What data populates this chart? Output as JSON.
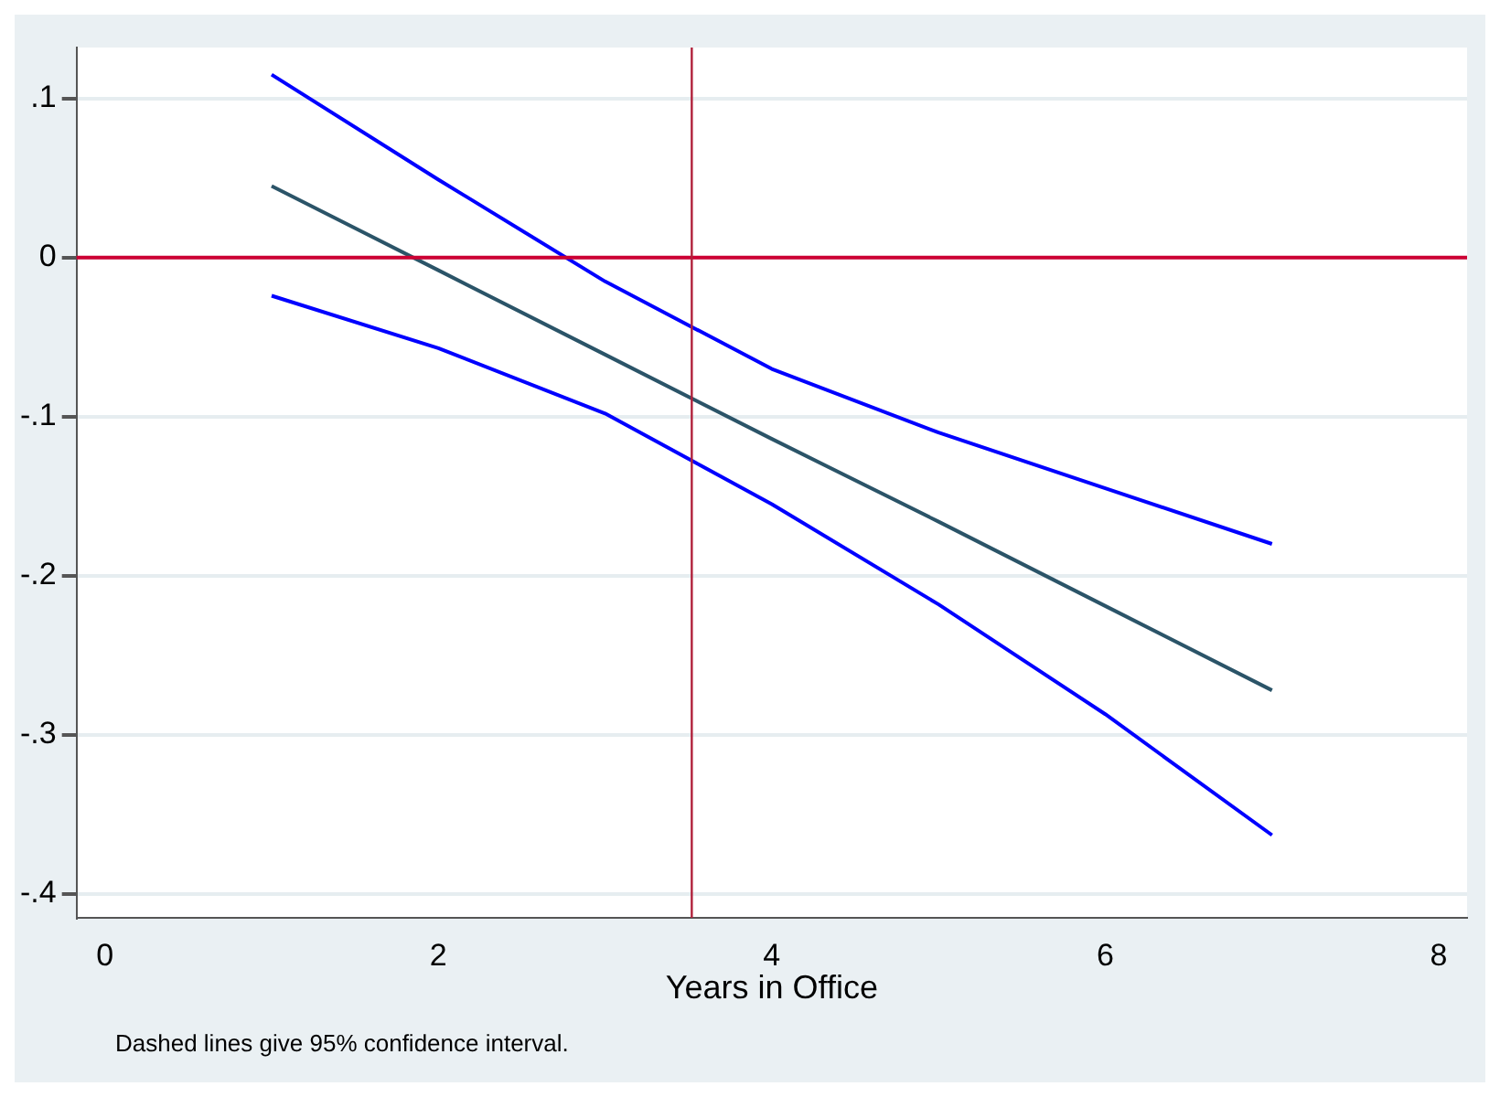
{
  "chart_data": {
    "type": "line",
    "xlabel": "Years in Office",
    "x": [
      1,
      2,
      3,
      4,
      5,
      6,
      7
    ],
    "series": [
      {
        "color": "#0000ff",
        "values": [
          0.115,
          0.049,
          -0.015,
          -0.07,
          -0.11,
          -0.145,
          -0.18
        ]
      },
      {
        "color": "#2b5468",
        "values": [
          0.045,
          -0.008,
          -0.061,
          -0.114,
          -0.166,
          -0.219,
          -0.272
        ]
      },
      {
        "color": "#0000ff",
        "values": [
          -0.024,
          -0.057,
          -0.098,
          -0.155,
          -0.218,
          -0.287,
          -0.363
        ]
      }
    ],
    "xlim": [
      -0.17,
      8.17
    ],
    "xticks": [
      0,
      2,
      4,
      6,
      8
    ],
    "ylim": [
      -0.415,
      0.132
    ],
    "yticks": [
      {
        "value": 0.1,
        "label": ".1"
      },
      {
        "value": 0,
        "label": "0"
      },
      {
        "value": -0.1,
        "label": "-.1"
      },
      {
        "value": -0.2,
        "label": "-.2"
      },
      {
        "value": -0.3,
        "label": "-.3"
      },
      {
        "value": -0.4,
        "label": "-.4"
      }
    ],
    "ref_lines": [
      {
        "axis": "y",
        "value": 0,
        "color": "#cc0033"
      },
      {
        "axis": "x",
        "value": 3.52,
        "color": "#b0203a"
      }
    ],
    "grid": "y",
    "legend": false,
    "marker": "none",
    "line_style": "solid",
    "annotations": [
      "Dashed lines give 95% confidence interval."
    ]
  }
}
